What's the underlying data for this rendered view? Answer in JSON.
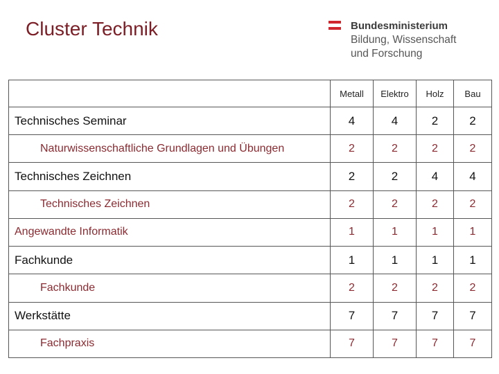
{
  "slide": {
    "title": "Cluster Technik"
  },
  "logo": {
    "line1": "Bundesministerium",
    "line2": "Bildung, Wissenschaft",
    "line3": "und Forschung"
  },
  "table": {
    "columns": [
      "Metall",
      "Elektro",
      "Holz",
      "Bau"
    ],
    "rows": [
      {
        "name": "Technisches Seminar",
        "values": [
          "4",
          "4",
          "2",
          "2"
        ]
      },
      {
        "name": "Naturwissenschaftliche Grundlagen und Übungen",
        "values": [
          "2",
          "2",
          "2",
          "2"
        ]
      },
      {
        "name": "Technisches Zeichnen",
        "values": [
          "2",
          "2",
          "4",
          "4"
        ]
      },
      {
        "name": "Technisches Zeichnen",
        "values": [
          "2",
          "2",
          "2",
          "2"
        ]
      },
      {
        "name": "Angewandte Informatik",
        "values": [
          "1",
          "1",
          "1",
          "1"
        ]
      },
      {
        "name": "Fachkunde",
        "values": [
          "1",
          "1",
          "1",
          "1"
        ]
      },
      {
        "name": "Fachkunde",
        "values": [
          "2",
          "2",
          "2",
          "2"
        ]
      },
      {
        "name": "Werkstätte",
        "values": [
          "7",
          "7",
          "7",
          "7"
        ]
      },
      {
        "name": "Fachpraxis",
        "values": [
          "7",
          "7",
          "7",
          "7"
        ]
      }
    ]
  },
  "colors": {
    "title": "#7b1e26",
    "subject_sub": "#8b2a30",
    "logo_accent": "#d0262e"
  }
}
